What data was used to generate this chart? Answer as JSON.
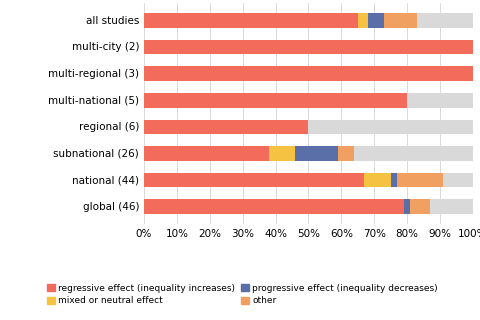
{
  "categories": [
    "all studies",
    "multi-city (2)",
    "multi-regional (3)",
    "multi-national (5)",
    "regional (6)",
    "subnational (26)",
    "national (44)",
    "global (46)"
  ],
  "segments": {
    "regressive": [
      65,
      100,
      100,
      80,
      50,
      38,
      67,
      79
    ],
    "mixed": [
      3,
      0,
      0,
      0,
      0,
      8,
      8,
      0
    ],
    "progressive": [
      5,
      0,
      0,
      0,
      0,
      13,
      2,
      2
    ],
    "other": [
      10,
      0,
      0,
      0,
      0,
      5,
      14,
      6
    ],
    "no_conclusion": [
      17,
      0,
      0,
      20,
      50,
      36,
      9,
      13
    ]
  },
  "colors": {
    "regressive": "#f26b5b",
    "mixed": "#f5c242",
    "progressive": "#5a6fa8",
    "other": "#f0a060",
    "no_conclusion": "#d9d9d9"
  },
  "legend_labels": {
    "regressive": "regressive effect (inequality increases)",
    "mixed": "mixed or neutral effect",
    "progressive": "progressive effect (inequality decreases)",
    "other": "other"
  },
  "legend_row1": [
    "regressive",
    "mixed"
  ],
  "legend_row2": [
    "progressive",
    "other"
  ],
  "xlabel_ticks": [
    0,
    10,
    20,
    30,
    40,
    50,
    60,
    70,
    80,
    90,
    100
  ],
  "bar_height": 0.55,
  "figsize": [
    4.8,
    3.2
  ],
  "dpi": 100,
  "background_color": "#ffffff"
}
